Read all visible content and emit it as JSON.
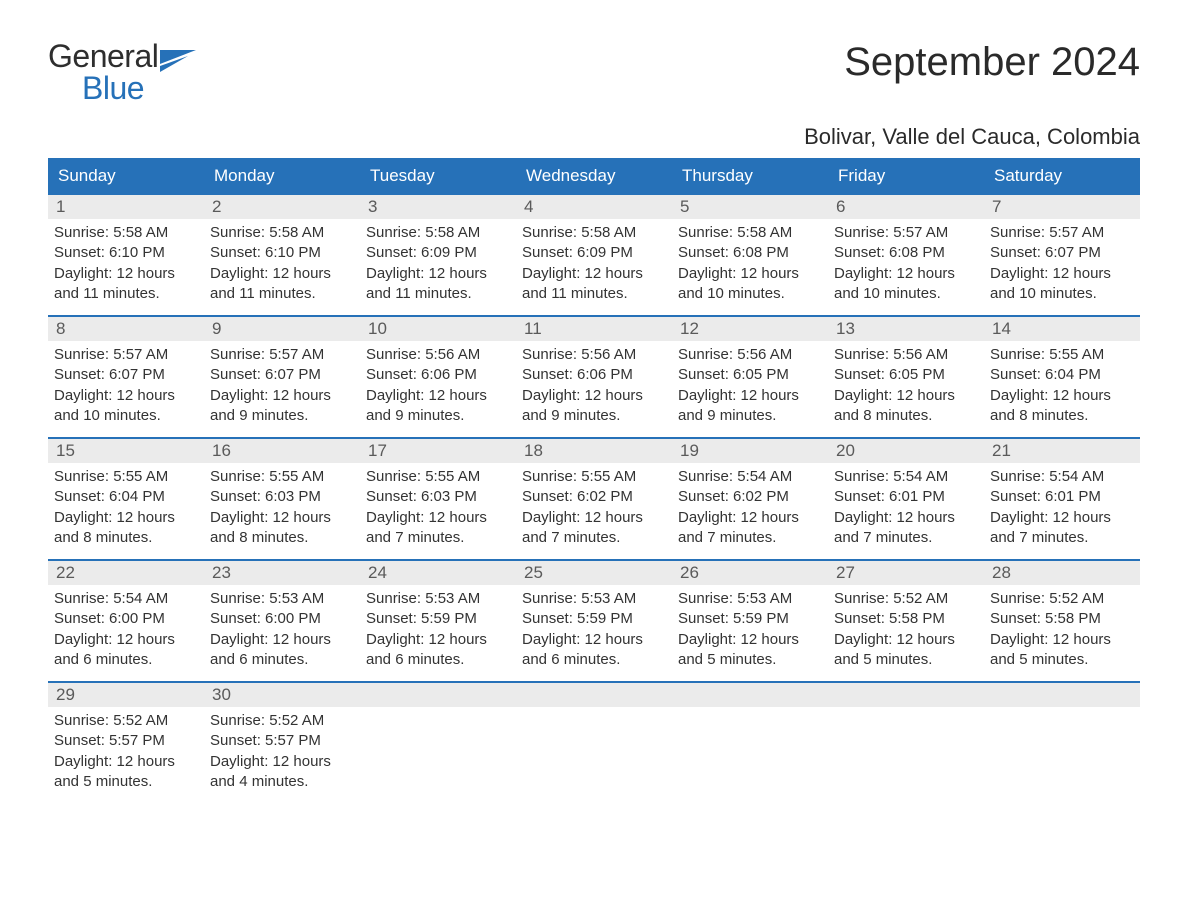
{
  "logo": {
    "word_general": "General",
    "word_blue": "Blue"
  },
  "title": "September 2024",
  "location": "Bolivar, Valle del Cauca, Colombia",
  "colors": {
    "header_bg": "#2671b8",
    "header_text": "#ffffff",
    "daynum_bg": "#ebebeb",
    "daynum_text": "#5a5a5a",
    "body_text": "#333333",
    "page_bg": "#ffffff",
    "logo_blue": "#2671b8",
    "logo_dark": "#2e2e2e"
  },
  "typography": {
    "title_fontsize": 40,
    "location_fontsize": 22,
    "dow_fontsize": 17,
    "daynum_fontsize": 17,
    "body_fontsize": 15
  },
  "dow": [
    "Sunday",
    "Monday",
    "Tuesday",
    "Wednesday",
    "Thursday",
    "Friday",
    "Saturday"
  ],
  "weeks": [
    [
      {
        "n": "1",
        "sunrise": "Sunrise: 5:58 AM",
        "sunset": "Sunset: 6:10 PM",
        "dl1": "Daylight: 12 hours",
        "dl2": "and 11 minutes."
      },
      {
        "n": "2",
        "sunrise": "Sunrise: 5:58 AM",
        "sunset": "Sunset: 6:10 PM",
        "dl1": "Daylight: 12 hours",
        "dl2": "and 11 minutes."
      },
      {
        "n": "3",
        "sunrise": "Sunrise: 5:58 AM",
        "sunset": "Sunset: 6:09 PM",
        "dl1": "Daylight: 12 hours",
        "dl2": "and 11 minutes."
      },
      {
        "n": "4",
        "sunrise": "Sunrise: 5:58 AM",
        "sunset": "Sunset: 6:09 PM",
        "dl1": "Daylight: 12 hours",
        "dl2": "and 11 minutes."
      },
      {
        "n": "5",
        "sunrise": "Sunrise: 5:58 AM",
        "sunset": "Sunset: 6:08 PM",
        "dl1": "Daylight: 12 hours",
        "dl2": "and 10 minutes."
      },
      {
        "n": "6",
        "sunrise": "Sunrise: 5:57 AM",
        "sunset": "Sunset: 6:08 PM",
        "dl1": "Daylight: 12 hours",
        "dl2": "and 10 minutes."
      },
      {
        "n": "7",
        "sunrise": "Sunrise: 5:57 AM",
        "sunset": "Sunset: 6:07 PM",
        "dl1": "Daylight: 12 hours",
        "dl2": "and 10 minutes."
      }
    ],
    [
      {
        "n": "8",
        "sunrise": "Sunrise: 5:57 AM",
        "sunset": "Sunset: 6:07 PM",
        "dl1": "Daylight: 12 hours",
        "dl2": "and 10 minutes."
      },
      {
        "n": "9",
        "sunrise": "Sunrise: 5:57 AM",
        "sunset": "Sunset: 6:07 PM",
        "dl1": "Daylight: 12 hours",
        "dl2": "and 9 minutes."
      },
      {
        "n": "10",
        "sunrise": "Sunrise: 5:56 AM",
        "sunset": "Sunset: 6:06 PM",
        "dl1": "Daylight: 12 hours",
        "dl2": "and 9 minutes."
      },
      {
        "n": "11",
        "sunrise": "Sunrise: 5:56 AM",
        "sunset": "Sunset: 6:06 PM",
        "dl1": "Daylight: 12 hours",
        "dl2": "and 9 minutes."
      },
      {
        "n": "12",
        "sunrise": "Sunrise: 5:56 AM",
        "sunset": "Sunset: 6:05 PM",
        "dl1": "Daylight: 12 hours",
        "dl2": "and 9 minutes."
      },
      {
        "n": "13",
        "sunrise": "Sunrise: 5:56 AM",
        "sunset": "Sunset: 6:05 PM",
        "dl1": "Daylight: 12 hours",
        "dl2": "and 8 minutes."
      },
      {
        "n": "14",
        "sunrise": "Sunrise: 5:55 AM",
        "sunset": "Sunset: 6:04 PM",
        "dl1": "Daylight: 12 hours",
        "dl2": "and 8 minutes."
      }
    ],
    [
      {
        "n": "15",
        "sunrise": "Sunrise: 5:55 AM",
        "sunset": "Sunset: 6:04 PM",
        "dl1": "Daylight: 12 hours",
        "dl2": "and 8 minutes."
      },
      {
        "n": "16",
        "sunrise": "Sunrise: 5:55 AM",
        "sunset": "Sunset: 6:03 PM",
        "dl1": "Daylight: 12 hours",
        "dl2": "and 8 minutes."
      },
      {
        "n": "17",
        "sunrise": "Sunrise: 5:55 AM",
        "sunset": "Sunset: 6:03 PM",
        "dl1": "Daylight: 12 hours",
        "dl2": "and 7 minutes."
      },
      {
        "n": "18",
        "sunrise": "Sunrise: 5:55 AM",
        "sunset": "Sunset: 6:02 PM",
        "dl1": "Daylight: 12 hours",
        "dl2": "and 7 minutes."
      },
      {
        "n": "19",
        "sunrise": "Sunrise: 5:54 AM",
        "sunset": "Sunset: 6:02 PM",
        "dl1": "Daylight: 12 hours",
        "dl2": "and 7 minutes."
      },
      {
        "n": "20",
        "sunrise": "Sunrise: 5:54 AM",
        "sunset": "Sunset: 6:01 PM",
        "dl1": "Daylight: 12 hours",
        "dl2": "and 7 minutes."
      },
      {
        "n": "21",
        "sunrise": "Sunrise: 5:54 AM",
        "sunset": "Sunset: 6:01 PM",
        "dl1": "Daylight: 12 hours",
        "dl2": "and 7 minutes."
      }
    ],
    [
      {
        "n": "22",
        "sunrise": "Sunrise: 5:54 AM",
        "sunset": "Sunset: 6:00 PM",
        "dl1": "Daylight: 12 hours",
        "dl2": "and 6 minutes."
      },
      {
        "n": "23",
        "sunrise": "Sunrise: 5:53 AM",
        "sunset": "Sunset: 6:00 PM",
        "dl1": "Daylight: 12 hours",
        "dl2": "and 6 minutes."
      },
      {
        "n": "24",
        "sunrise": "Sunrise: 5:53 AM",
        "sunset": "Sunset: 5:59 PM",
        "dl1": "Daylight: 12 hours",
        "dl2": "and 6 minutes."
      },
      {
        "n": "25",
        "sunrise": "Sunrise: 5:53 AM",
        "sunset": "Sunset: 5:59 PM",
        "dl1": "Daylight: 12 hours",
        "dl2": "and 6 minutes."
      },
      {
        "n": "26",
        "sunrise": "Sunrise: 5:53 AM",
        "sunset": "Sunset: 5:59 PM",
        "dl1": "Daylight: 12 hours",
        "dl2": "and 5 minutes."
      },
      {
        "n": "27",
        "sunrise": "Sunrise: 5:52 AM",
        "sunset": "Sunset: 5:58 PM",
        "dl1": "Daylight: 12 hours",
        "dl2": "and 5 minutes."
      },
      {
        "n": "28",
        "sunrise": "Sunrise: 5:52 AM",
        "sunset": "Sunset: 5:58 PM",
        "dl1": "Daylight: 12 hours",
        "dl2": "and 5 minutes."
      }
    ],
    [
      {
        "n": "29",
        "sunrise": "Sunrise: 5:52 AM",
        "sunset": "Sunset: 5:57 PM",
        "dl1": "Daylight: 12 hours",
        "dl2": "and 5 minutes."
      },
      {
        "n": "30",
        "sunrise": "Sunrise: 5:52 AM",
        "sunset": "Sunset: 5:57 PM",
        "dl1": "Daylight: 12 hours",
        "dl2": "and 4 minutes."
      },
      {
        "n": "",
        "empty": true
      },
      {
        "n": "",
        "empty": true
      },
      {
        "n": "",
        "empty": true
      },
      {
        "n": "",
        "empty": true
      },
      {
        "n": "",
        "empty": true
      }
    ]
  ]
}
